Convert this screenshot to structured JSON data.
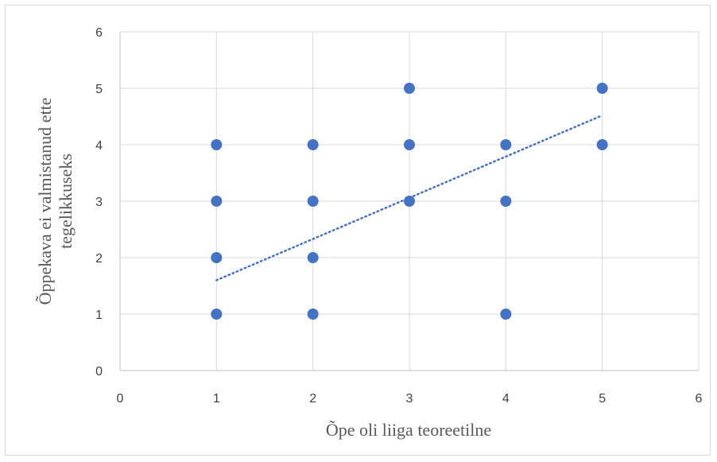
{
  "chart_data": {
    "type": "scatter",
    "title": "",
    "xlabel": "Õpe oli liiga teoreetilne",
    "ylabel_lines": [
      "Õppekava ei valmistanud ette",
      "tegelikkuseks"
    ],
    "xlim": [
      0,
      6
    ],
    "ylim": [
      0,
      6
    ],
    "x_ticks": [
      "0",
      "1",
      "2",
      "3",
      "4",
      "5",
      "6"
    ],
    "y_ticks": [
      "0",
      "1",
      "2",
      "3",
      "4",
      "5",
      "6"
    ],
    "grid": true,
    "legend": "none",
    "marker_color": "#4472C4",
    "trendline": {
      "type": "linear",
      "style": "dotted",
      "color": "#4472C4",
      "x_range": [
        1,
        5
      ],
      "y_start": 1.6,
      "y_end": 4.52
    },
    "points": [
      {
        "x": 1,
        "y": 1
      },
      {
        "x": 1,
        "y": 2
      },
      {
        "x": 1,
        "y": 3
      },
      {
        "x": 1,
        "y": 4
      },
      {
        "x": 2,
        "y": 1
      },
      {
        "x": 2,
        "y": 2
      },
      {
        "x": 2,
        "y": 3
      },
      {
        "x": 2,
        "y": 4
      },
      {
        "x": 3,
        "y": 3
      },
      {
        "x": 3,
        "y": 4
      },
      {
        "x": 3,
        "y": 5
      },
      {
        "x": 4,
        "y": 1
      },
      {
        "x": 4,
        "y": 3
      },
      {
        "x": 4,
        "y": 4
      },
      {
        "x": 5,
        "y": 4
      },
      {
        "x": 5,
        "y": 5
      }
    ]
  }
}
